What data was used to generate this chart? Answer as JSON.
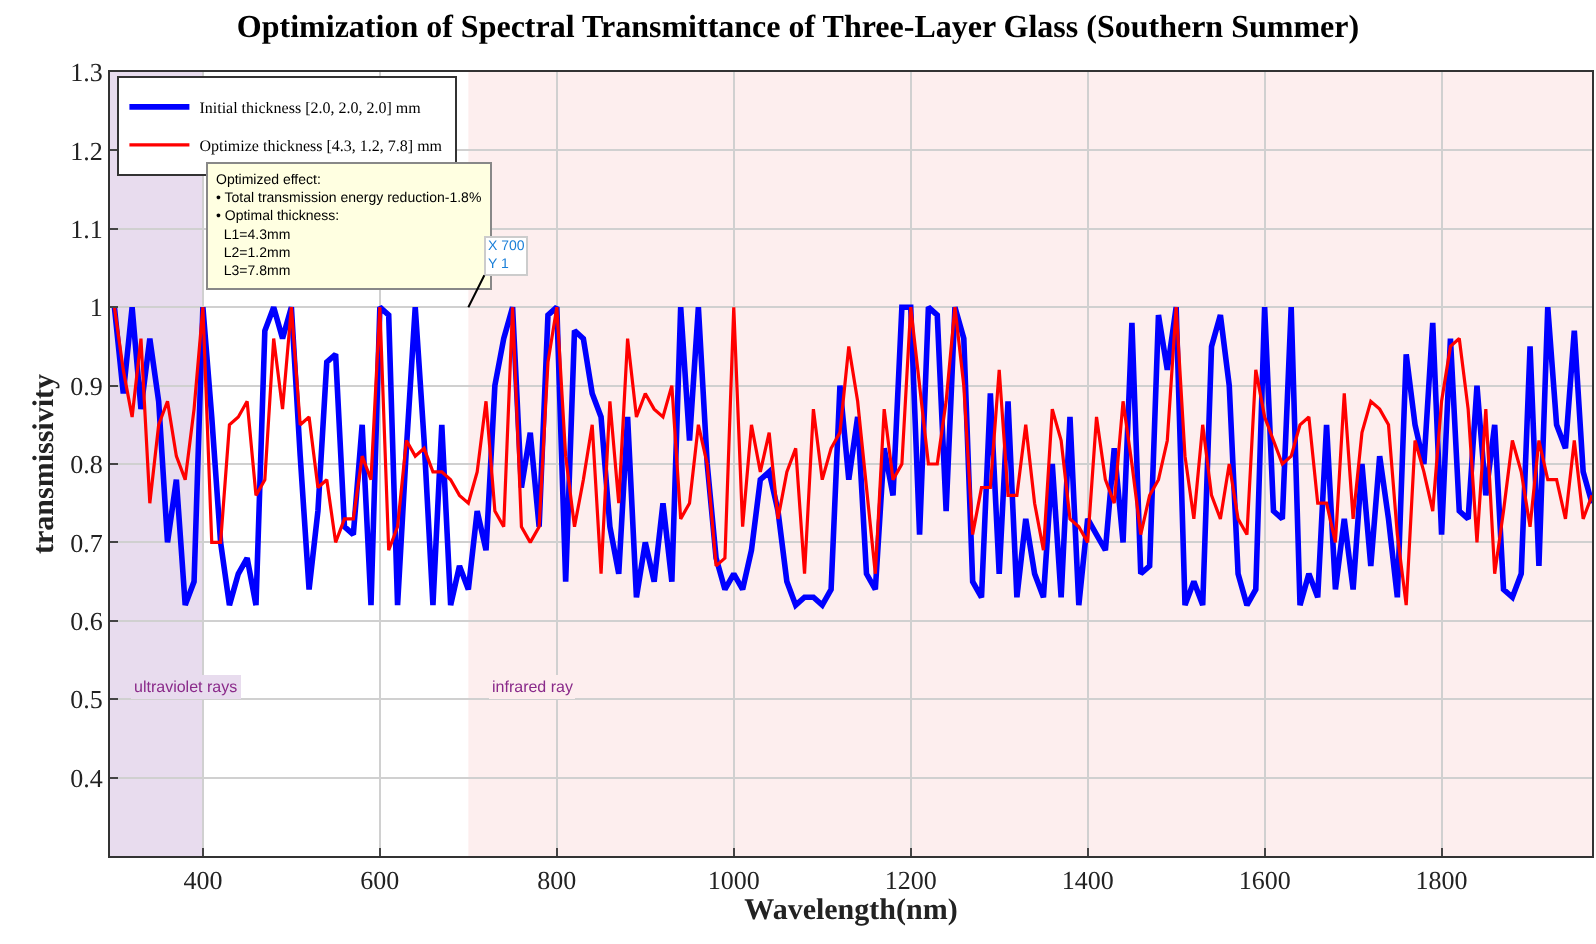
{
  "chart_data": {
    "type": "line",
    "title": "Optimization of Spectral Transmittance of Three-Layer Glass (Southern Summer)",
    "xlabel": "Wavelength(nm)",
    "ylabel": "transmissivity",
    "x": [
      300,
      310,
      320,
      330,
      340,
      350,
      360,
      370,
      380,
      390,
      400,
      410,
      420,
      430,
      440,
      450,
      460,
      470,
      480,
      490,
      500,
      510,
      520,
      530,
      540,
      550,
      560,
      570,
      580,
      590,
      600,
      610,
      620,
      630,
      640,
      650,
      660,
      670,
      680,
      690,
      700,
      710,
      720,
      730,
      740,
      750,
      760,
      770,
      780,
      790,
      800,
      810,
      820,
      830,
      840,
      850,
      860,
      870,
      880,
      890,
      900,
      910,
      920,
      930,
      940,
      950,
      960,
      970,
      980,
      990,
      1000,
      1010,
      1020,
      1030,
      1040,
      1050,
      1060,
      1070,
      1080,
      1090,
      1100,
      1110,
      1120,
      1130,
      1140,
      1150,
      1160,
      1170,
      1180,
      1190,
      1200,
      1210,
      1220,
      1230,
      1240,
      1250,
      1260,
      1270,
      1280,
      1290,
      1300,
      1310,
      1320,
      1330,
      1340,
      1350,
      1360,
      1370,
      1380,
      1390,
      1400,
      1410,
      1420,
      1430,
      1440,
      1450,
      1460,
      1470,
      1480,
      1490,
      1500,
      1510,
      1520,
      1530,
      1540,
      1550,
      1560,
      1570,
      1580,
      1590,
      1600,
      1610,
      1620,
      1630,
      1640,
      1650,
      1660,
      1670,
      1680,
      1690,
      1700,
      1710,
      1720,
      1730,
      1740,
      1750,
      1760,
      1770,
      1780,
      1790,
      1800,
      1810,
      1820,
      1830,
      1840,
      1850,
      1860,
      1870,
      1880,
      1890,
      1900,
      1910,
      1920,
      1930,
      1940,
      1950,
      1960,
      1970
    ],
    "series": [
      {
        "name": "Initial thickness [2.0, 2.0, 2.0] mm",
        "color": "#0000ff",
        "values": [
          1.0,
          0.89,
          1.0,
          0.87,
          0.96,
          0.88,
          0.7,
          0.78,
          0.62,
          0.65,
          1.0,
          0.86,
          0.7,
          0.62,
          0.66,
          0.68,
          0.62,
          0.97,
          1.0,
          0.96,
          1.0,
          0.81,
          0.64,
          0.74,
          0.93,
          0.94,
          0.72,
          0.71,
          0.85,
          0.62,
          1.0,
          0.99,
          0.62,
          0.82,
          1.0,
          0.83,
          0.62,
          0.85,
          0.62,
          0.67,
          0.64,
          0.74,
          0.69,
          0.9,
          0.96,
          1.0,
          0.77,
          0.84,
          0.72,
          0.99,
          1.0,
          0.65,
          0.97,
          0.96,
          0.89,
          0.86,
          0.72,
          0.66,
          0.86,
          0.63,
          0.7,
          0.65,
          0.75,
          0.65,
          1.0,
          0.83,
          1.0,
          0.8,
          0.68,
          0.64,
          0.66,
          0.64,
          0.69,
          0.78,
          0.79,
          0.74,
          0.65,
          0.62,
          0.63,
          0.63,
          0.62,
          0.64,
          0.9,
          0.78,
          0.86,
          0.66,
          0.64,
          0.82,
          0.76,
          1.0,
          1.0,
          0.71,
          1.0,
          0.99,
          0.74,
          1.0,
          0.96,
          0.65,
          0.63,
          0.89,
          0.66,
          0.88,
          0.63,
          0.73,
          0.66,
          0.63,
          0.8,
          0.63,
          0.86,
          0.62,
          0.73,
          0.71,
          0.69,
          0.82,
          0.7,
          0.98,
          0.66,
          0.67,
          0.99,
          0.92,
          1.0,
          0.62,
          0.65,
          0.62,
          0.95,
          0.99,
          0.9,
          0.66,
          0.62,
          0.64,
          1.0,
          0.74,
          0.73,
          1.0,
          0.62,
          0.66,
          0.63,
          0.85,
          0.64,
          0.73,
          0.64,
          0.8,
          0.67,
          0.81,
          0.73,
          0.63,
          0.94,
          0.85,
          0.8,
          0.98,
          0.71,
          0.96,
          0.74,
          0.73,
          0.9,
          0.76,
          0.85,
          0.64,
          0.63,
          0.66,
          0.95,
          0.67,
          1.0,
          0.85,
          0.82,
          0.97,
          0.79,
          0.75
        ]
      },
      {
        "name": "Optimize thickness [4.3, 1.2, 7.8] mm",
        "color": "#ff0000",
        "values": [
          1.0,
          0.92,
          0.86,
          0.96,
          0.75,
          0.85,
          0.88,
          0.81,
          0.78,
          0.87,
          1.0,
          0.7,
          0.7,
          0.85,
          0.86,
          0.88,
          0.76,
          0.78,
          0.96,
          0.87,
          1.0,
          0.85,
          0.86,
          0.77,
          0.78,
          0.7,
          0.73,
          0.73,
          0.81,
          0.78,
          1.0,
          0.69,
          0.72,
          0.83,
          0.81,
          0.82,
          0.79,
          0.79,
          0.78,
          0.76,
          0.75,
          0.79,
          0.88,
          0.74,
          0.72,
          1.0,
          0.72,
          0.7,
          0.72,
          0.93,
          1.0,
          0.81,
          0.72,
          0.78,
          0.85,
          0.66,
          0.88,
          0.75,
          0.96,
          0.86,
          0.89,
          0.87,
          0.86,
          0.9,
          0.73,
          0.75,
          0.85,
          0.8,
          0.67,
          0.68,
          1.0,
          0.72,
          0.85,
          0.79,
          0.84,
          0.73,
          0.79,
          0.82,
          0.66,
          0.87,
          0.78,
          0.82,
          0.84,
          0.95,
          0.88,
          0.77,
          0.66,
          0.87,
          0.78,
          0.8,
          1.0,
          0.9,
          0.8,
          0.8,
          0.88,
          1.0,
          0.9,
          0.71,
          0.77,
          0.77,
          0.92,
          0.76,
          0.76,
          0.85,
          0.75,
          0.69,
          0.87,
          0.83,
          0.73,
          0.72,
          0.7,
          0.86,
          0.78,
          0.75,
          0.88,
          0.8,
          0.71,
          0.76,
          0.78,
          0.83,
          1.0,
          0.81,
          0.73,
          0.85,
          0.76,
          0.73,
          0.8,
          0.73,
          0.71,
          0.92,
          0.86,
          0.83,
          0.8,
          0.81,
          0.85,
          0.86,
          0.75,
          0.75,
          0.7,
          0.89,
          0.73,
          0.84,
          0.88,
          0.87,
          0.85,
          0.71,
          0.62,
          0.83,
          0.79,
          0.74,
          0.88,
          0.95,
          0.96,
          0.87,
          0.7,
          0.87,
          0.66,
          0.74,
          0.83,
          0.79,
          0.72,
          0.83,
          0.78,
          0.78,
          0.73,
          0.83,
          0.73,
          0.76
        ]
      }
    ],
    "xlim": [
      295,
      1970
    ],
    "ylim": [
      0.3,
      1.3
    ],
    "xticks": [
      400,
      600,
      800,
      1000,
      1200,
      1400,
      1600,
      1800
    ],
    "yticks": [
      {
        "value": 0.4,
        "label": "0.4"
      },
      {
        "value": 0.5,
        "label": "0.5"
      },
      {
        "value": 0.6,
        "label": "0.6"
      },
      {
        "value": 0.7,
        "label": "0.7"
      },
      {
        "value": 0.8,
        "label": "0.8"
      },
      {
        "value": 0.9,
        "label": "0.9"
      },
      1,
      {
        "value": 1.1,
        "label": "1.1"
      },
      {
        "value": 1.2,
        "label": "1.2"
      },
      {
        "value": 1.3,
        "label": "1.3"
      }
    ],
    "bands": [
      {
        "axis": "x",
        "from": 295,
        "to": 400,
        "label": "ultraviolet rays",
        "color": "#e8dcee"
      },
      {
        "axis": "x",
        "from": 700,
        "to": 1970,
        "label": "infrared ray",
        "color": "#fdeeee"
      }
    ],
    "annotations": [
      "Optimized effect:\n• Total transmission energy reduction-1.8%\n• Optimal thickness:\n  L1=4.3mm\n  L2=1.2mm\n  L3=7.8mm",
      {
        "text": "X 700\nY 1",
        "x": 700,
        "y": 1
      }
    ],
    "grid": true,
    "legend": "top left",
    "line_style": "solid",
    "marker": "none"
  }
}
